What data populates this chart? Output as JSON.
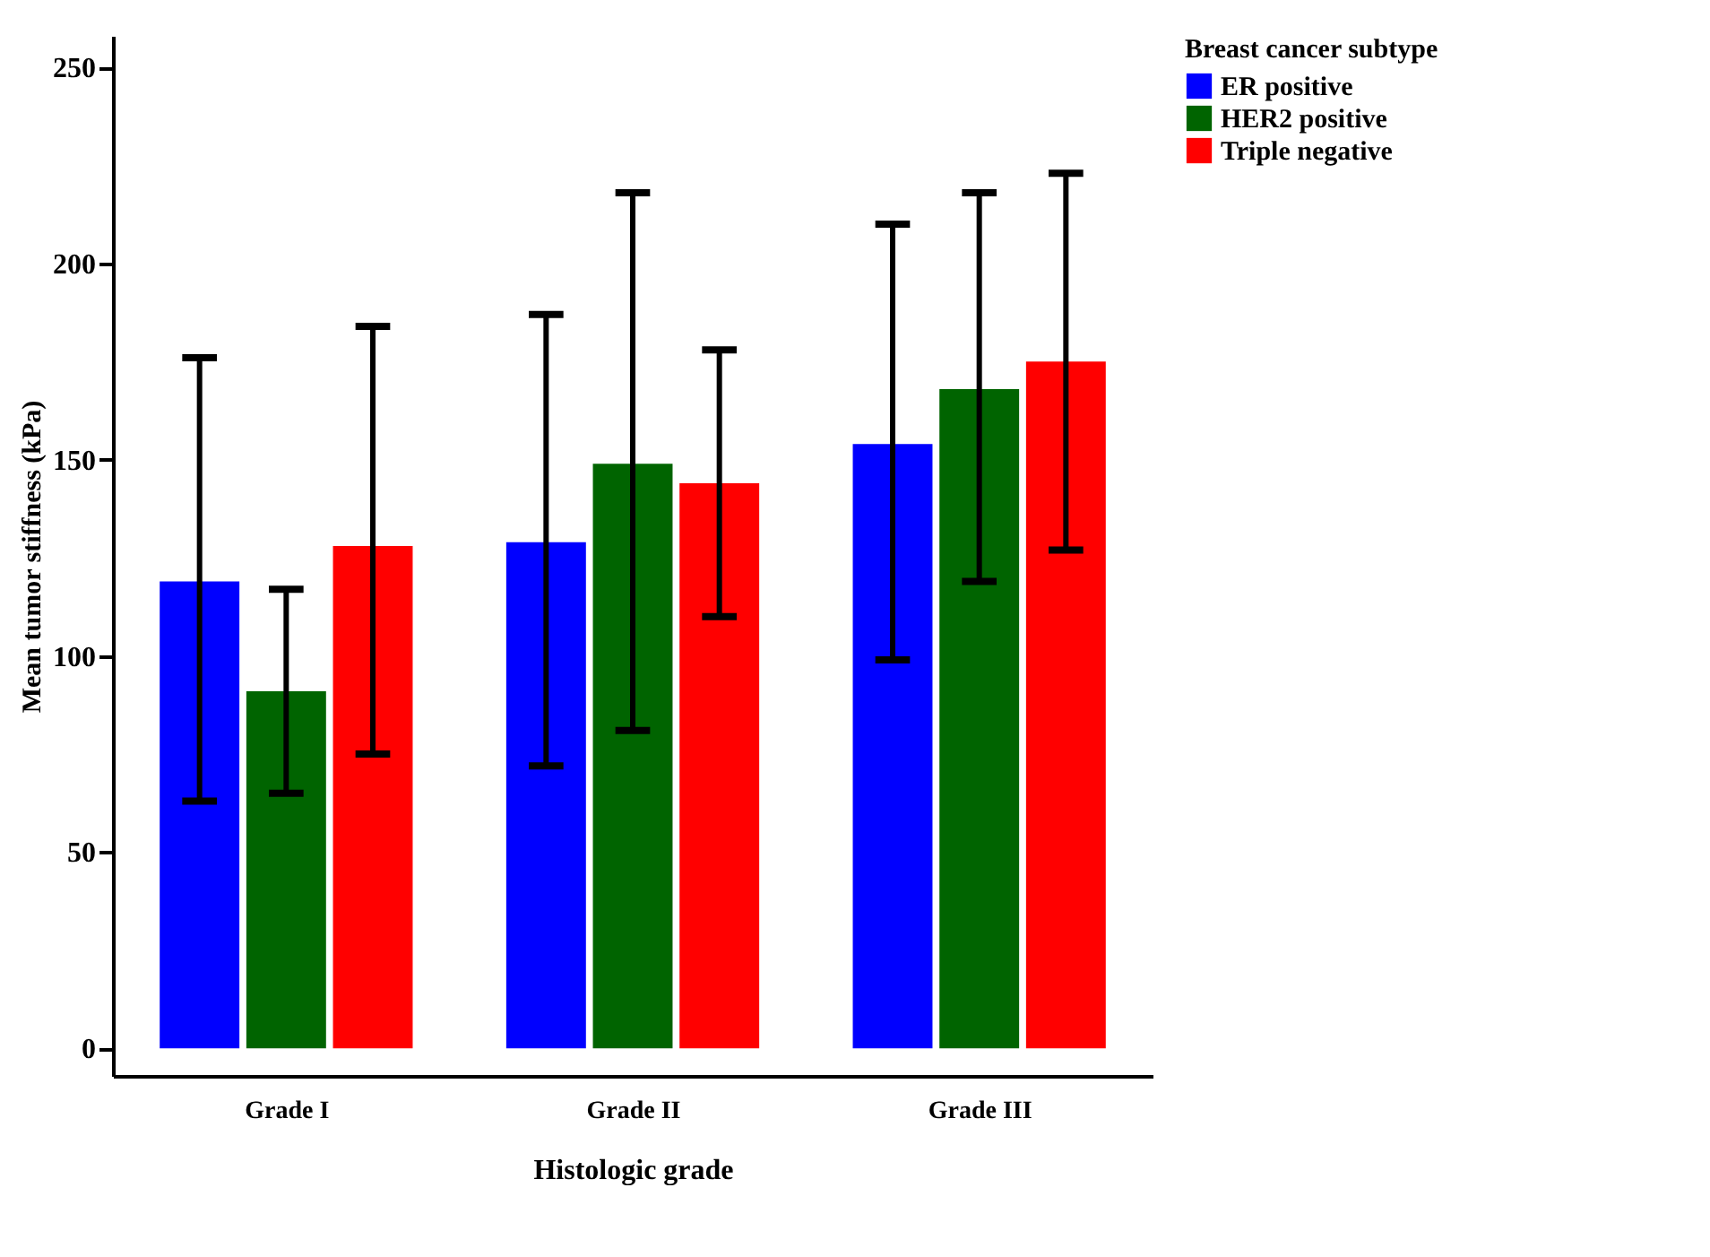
{
  "chart_data": {
    "type": "bar",
    "xlabel": "Histologic grade",
    "ylabel": "Mean tumor stiffness (kPa)",
    "legend_title": "Breast cancer subtype",
    "categories": [
      "Grade I",
      "Grade II",
      "Grade III"
    ],
    "series": [
      {
        "name": "ER positive",
        "color": "#0000ff",
        "values": [
          119,
          129,
          154
        ],
        "errors": [
          [
            63,
            176
          ],
          [
            72,
            187
          ],
          [
            99,
            210
          ]
        ]
      },
      {
        "name": "HER2 positive",
        "color": "#006400",
        "values": [
          91,
          149,
          168
        ],
        "errors": [
          [
            65,
            117
          ],
          [
            81,
            218
          ],
          [
            119,
            218
          ]
        ]
      },
      {
        "name": "Triple negative",
        "color": "#ff0000",
        "values": [
          128,
          144,
          175
        ],
        "errors": [
          [
            75,
            184
          ],
          [
            110,
            178
          ],
          [
            127,
            223
          ]
        ]
      }
    ],
    "ylim": [
      -7,
      258
    ],
    "yticks": [
      0,
      50,
      100,
      150,
      200,
      250
    ],
    "grid": false,
    "legend": "right"
  }
}
